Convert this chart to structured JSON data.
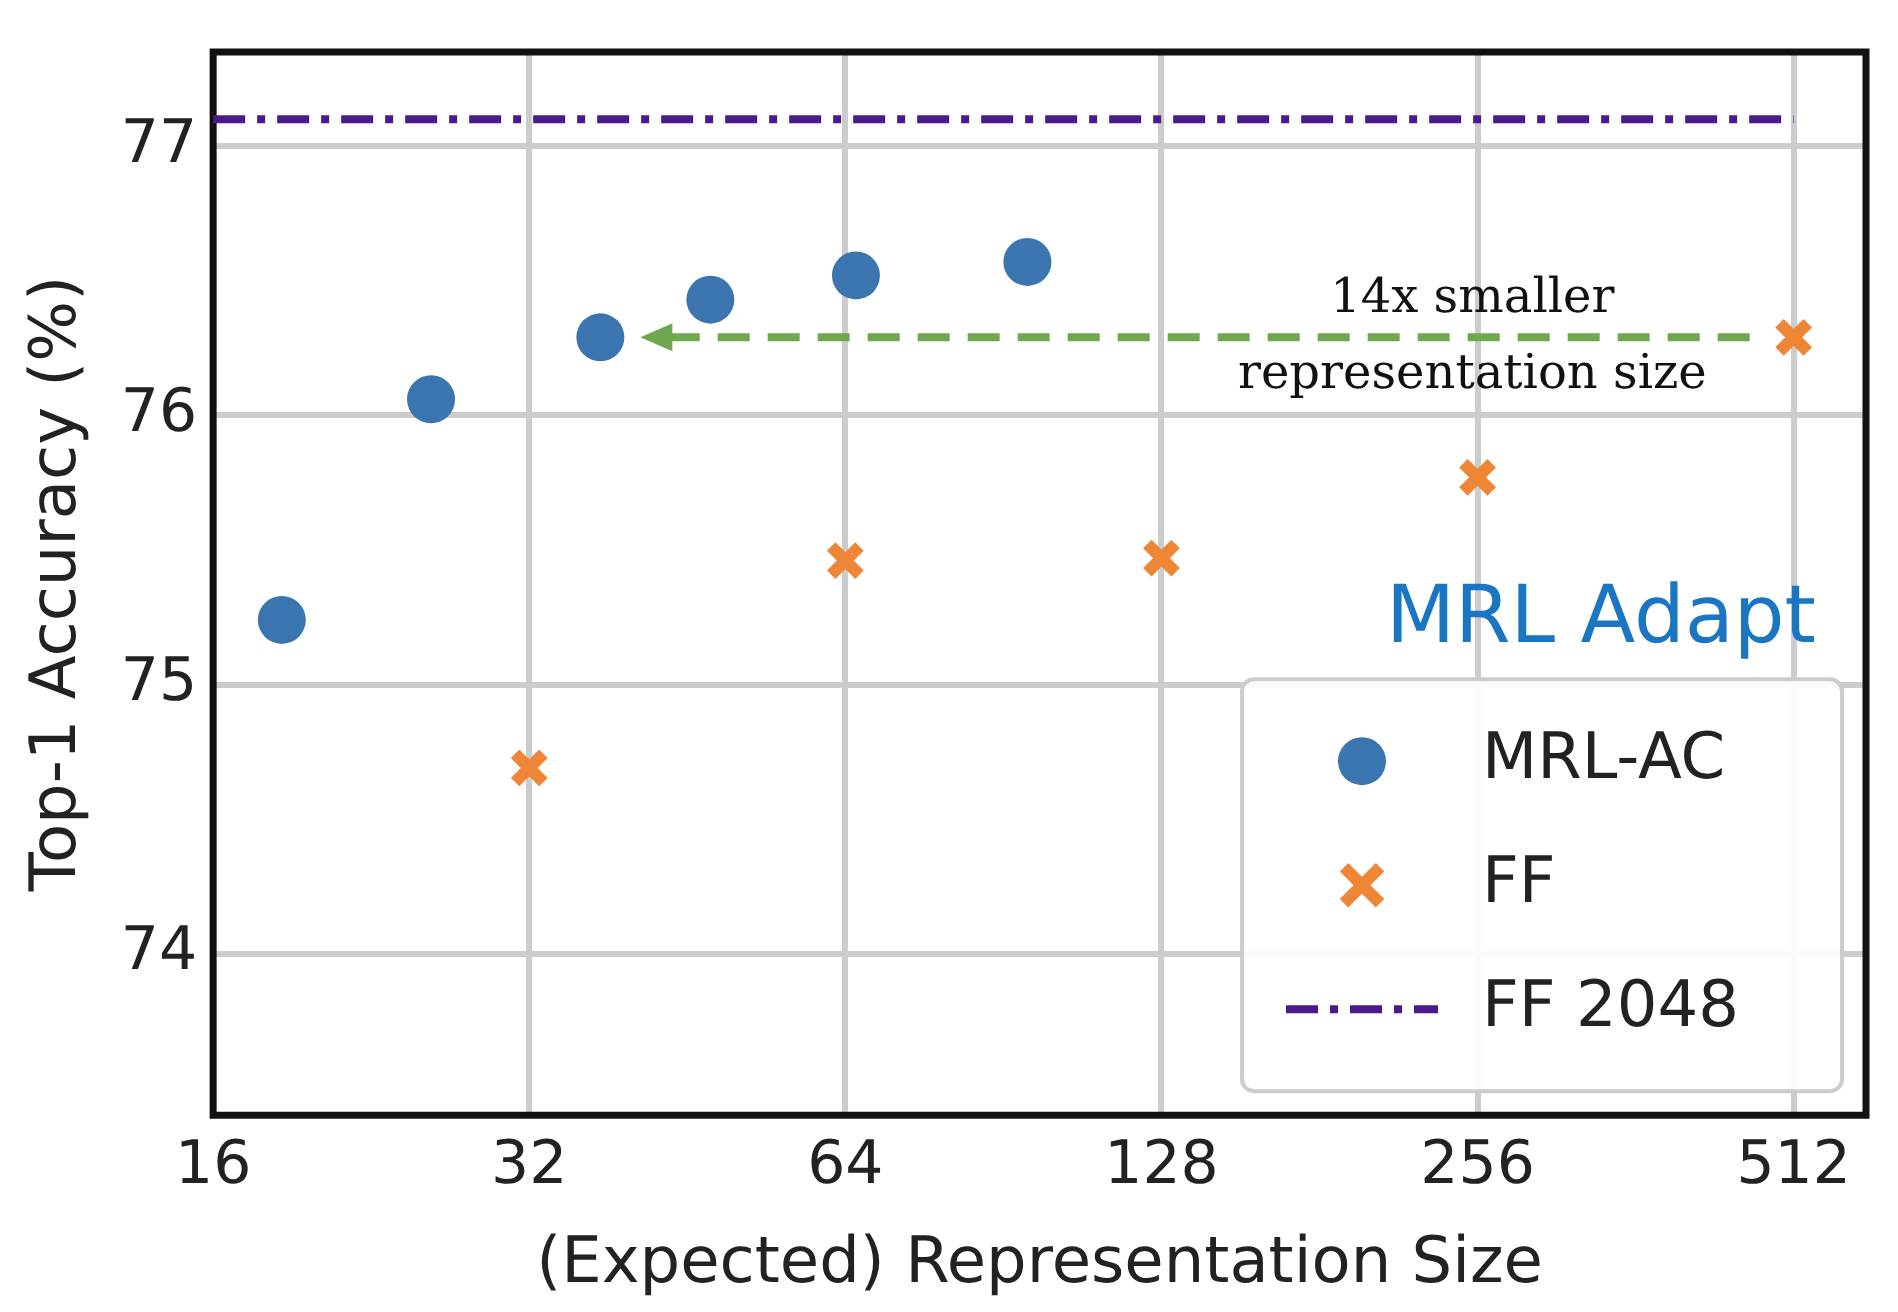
{
  "chart_data": {
    "type": "scatter",
    "xlabel": "(Expected) Representation Size",
    "ylabel": "Top-1 Accuracy (%)",
    "log": "x",
    "xlim": [
      16,
      600
    ],
    "xticks": [
      16,
      32,
      64,
      128,
      256,
      512
    ],
    "ylim": [
      73.4,
      77.35
    ],
    "yticks": [
      74,
      75,
      76,
      77
    ],
    "grid": true,
    "legend": "bottom right",
    "series": [
      {
        "name": "MRL-AC",
        "marker": "circle",
        "color": "#3a75af",
        "x": [
          18.6,
          25.8,
          37.4,
          47.6,
          65.5,
          95.4
        ],
        "values": [
          75.24,
          76.06,
          76.29,
          76.43,
          76.52,
          76.57
        ]
      },
      {
        "name": "FF",
        "marker": "cross",
        "color": "#ef8636",
        "x": [
          32,
          64,
          128,
          256,
          512
        ],
        "values": [
          74.69,
          75.46,
          75.47,
          75.77,
          76.29
        ]
      },
      {
        "name": "FF 2048",
        "type": "line",
        "marker": "none",
        "line_style": "dashdot",
        "color": "#4b1a8c",
        "x": [
          16,
          512
        ],
        "values": [
          77.1,
          77.1
        ]
      }
    ],
    "title": "MRL Adapt",
    "annotations": [
      "14x smaller",
      "representation size"
    ]
  }
}
